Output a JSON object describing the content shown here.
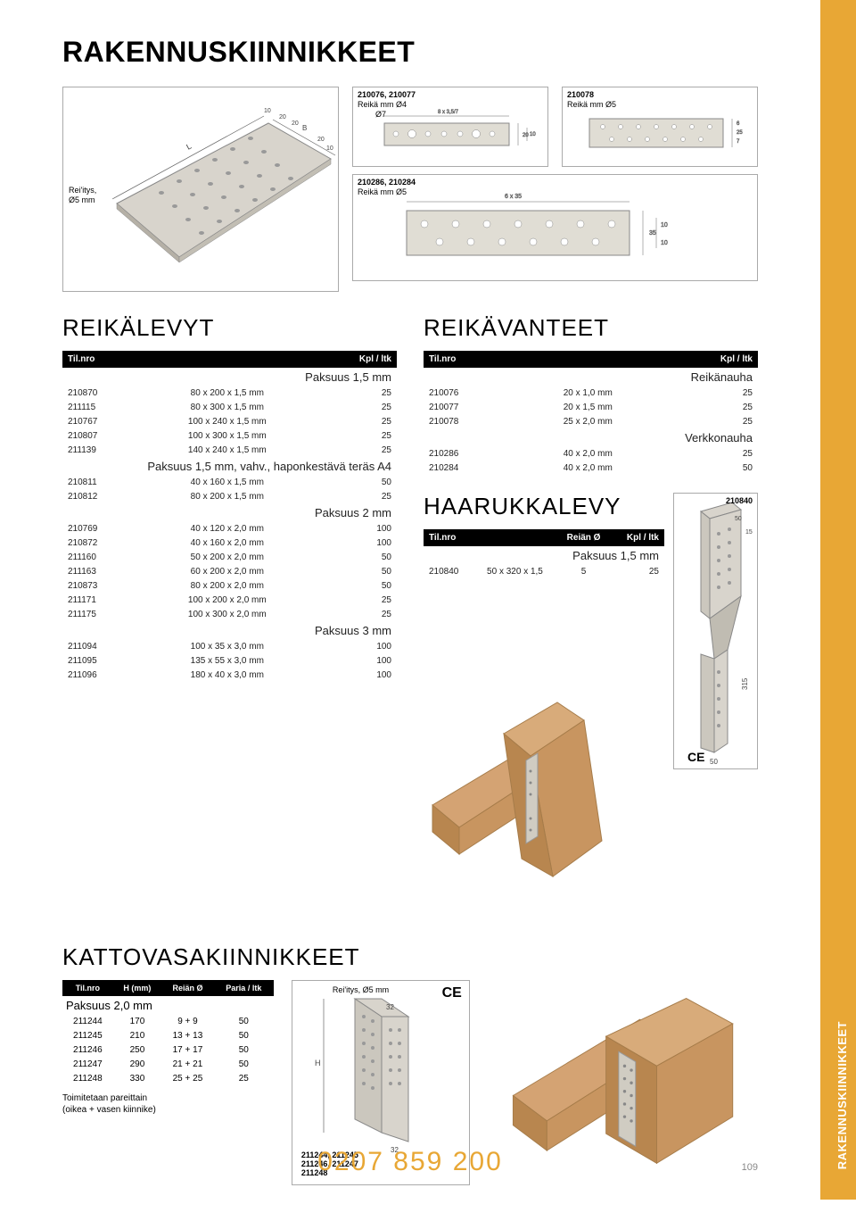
{
  "page_title": "RAKENNUSKIINNIKKEET",
  "side_tab": "RAKENNUSKIINNIKKEET",
  "footer_phone": "0207 859 200",
  "page_number": "109",
  "diagrams": {
    "main3d": {
      "label": "Rei'itys,\nØ5 mm"
    },
    "d1": {
      "label": "210076, 210077",
      "sub": "Reikä mm Ø4",
      "sub2": "Ø7"
    },
    "d2": {
      "label": "210078",
      "sub": "Reikä mm Ø5"
    },
    "d3": {
      "label": "210286, 210284",
      "sub": "Reikä mm Ø5"
    }
  },
  "reikalevyt": {
    "title": "REIKÄLEVYT",
    "headers": [
      "Til.nro",
      "",
      "Kpl / ltk"
    ],
    "groups": [
      {
        "title": "Paksuus 1,5 mm",
        "rows": [
          [
            "210870",
            "80 x 200 x 1,5 mm",
            "25"
          ],
          [
            "211115",
            "80 x 300 x 1,5 mm",
            "25"
          ],
          [
            "210767",
            "100 x 240 x 1,5 mm",
            "25"
          ],
          [
            "210807",
            "100 x 300 x 1,5 mm",
            "25"
          ],
          [
            "211139",
            "140 x 240 x 1,5 mm",
            "25"
          ]
        ]
      },
      {
        "title": "Paksuus 1,5 mm, vahv., haponkestävä teräs A4",
        "rows": [
          [
            "210811",
            "40 x 160 x 1,5 mm",
            "50"
          ],
          [
            "210812",
            "80 x 200 x 1,5 mm",
            "25"
          ]
        ]
      },
      {
        "title": "Paksuus 2 mm",
        "rows": [
          [
            "210769",
            "40 x 120 x 2,0 mm",
            "100"
          ],
          [
            "210872",
            "40 x 160 x 2,0 mm",
            "100"
          ],
          [
            "211160",
            "50 x 200 x 2,0 mm",
            "50"
          ],
          [
            "211163",
            "60 x 200 x 2,0 mm",
            "50"
          ],
          [
            "210873",
            "80 x 200 x 2,0 mm",
            "50"
          ],
          [
            "211171",
            "100 x 200 x 2,0 mm",
            "25"
          ],
          [
            "211175",
            "100 x 300 x 2,0 mm",
            "25"
          ]
        ]
      },
      {
        "title": "Paksuus 3 mm",
        "rows": [
          [
            "211094",
            "100 x 35 x 3,0 mm",
            "100"
          ],
          [
            "211095",
            "135 x 55 x 3,0 mm",
            "100"
          ],
          [
            "211096",
            "180 x 40 x 3,0 mm",
            "100"
          ]
        ]
      }
    ]
  },
  "reikavanteet": {
    "title": "REIKÄVANTEET",
    "headers": [
      "Til.nro",
      "",
      "Kpl / ltk"
    ],
    "groups": [
      {
        "title": "Reikänauha",
        "rows": [
          [
            "210076",
            "20 x 1,0 mm",
            "25"
          ],
          [
            "210077",
            "20 x 1,5 mm",
            "25"
          ],
          [
            "210078",
            "25 x 2,0 mm",
            "25"
          ]
        ]
      },
      {
        "title": "Verkkonauha",
        "rows": [
          [
            "210286",
            "40 x 2,0 mm",
            "25"
          ],
          [
            "210284",
            "40 x 2,0 mm",
            "50"
          ]
        ]
      }
    ]
  },
  "haarukkalevy": {
    "title": "HAARUKKALEVY",
    "headers": [
      "Til.nro",
      "",
      "Reiän Ø",
      "Kpl / ltk"
    ],
    "group_title": "Paksuus 1,5 mm",
    "rows": [
      [
        "210840",
        "50 x 320 x 1,5",
        "5",
        "25"
      ]
    ],
    "diag_label": "210840"
  },
  "kattovasa": {
    "title": "KATTOVASAKIINNIKKEET",
    "headers": [
      "Til.nro",
      "H (mm)",
      "Reiän Ø",
      "Paria / ltk"
    ],
    "group_title": "Paksuus 2,0 mm",
    "rows": [
      [
        "211244",
        "170",
        "9 + 9",
        "50"
      ],
      [
        "211245",
        "210",
        "13 + 13",
        "50"
      ],
      [
        "211246",
        "250",
        "17 + 17",
        "50"
      ],
      [
        "211247",
        "290",
        "21 + 21",
        "50"
      ],
      [
        "211248",
        "330",
        "25 + 25",
        "25"
      ]
    ],
    "note": "Toimitetaan pareittain\n(oikea + vasen kiinnike)",
    "diag_label": "Rei'itys, Ø5 mm",
    "diag_nums": "211244, 211245\n211246, 211247\n211248"
  }
}
